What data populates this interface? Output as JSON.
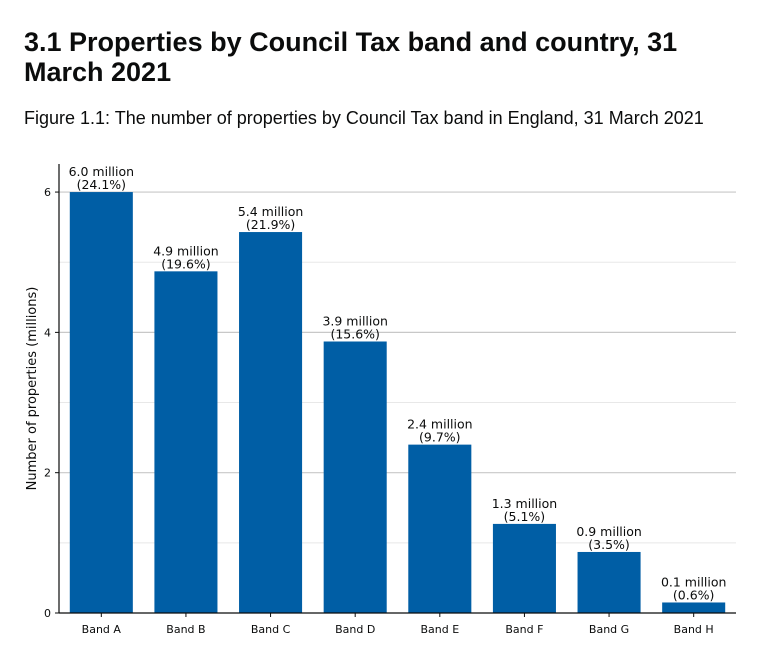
{
  "section_heading": "3.1 Properties by Council Tax band and country, 31 March 2021",
  "figure_caption": "Figure 1.1: The number of properties by Council Tax band in England, 31 March 2021",
  "chart_data": {
    "type": "bar",
    "title": "",
    "xlabel": "",
    "ylabel": "Number of properties (millions)",
    "categories": [
      "Band A",
      "Band B",
      "Band C",
      "Band D",
      "Band E",
      "Band F",
      "Band G",
      "Band H"
    ],
    "values": [
      6.0,
      4.87,
      5.43,
      3.87,
      2.4,
      1.27,
      0.87,
      0.15
    ],
    "value_labels": [
      "6.0 million",
      "4.9 million",
      "5.4 million",
      "3.9 million",
      "2.4 million",
      "1.3 million",
      "0.9 million",
      "0.1 million"
    ],
    "percent_labels": [
      "(24.1%)",
      "(19.6%)",
      "(21.9%)",
      "(15.6%)",
      "(9.7%)",
      "(5.1%)",
      "(3.5%)",
      "(0.6%)"
    ],
    "yticks": [
      0,
      2,
      4,
      6
    ],
    "ylim": [
      0,
      6.4
    ],
    "grid": "horizontal, major at 2 and minor at 1",
    "legend": "none",
    "bar_color": "#005ea5",
    "grid_color": "#c8c8c8"
  }
}
